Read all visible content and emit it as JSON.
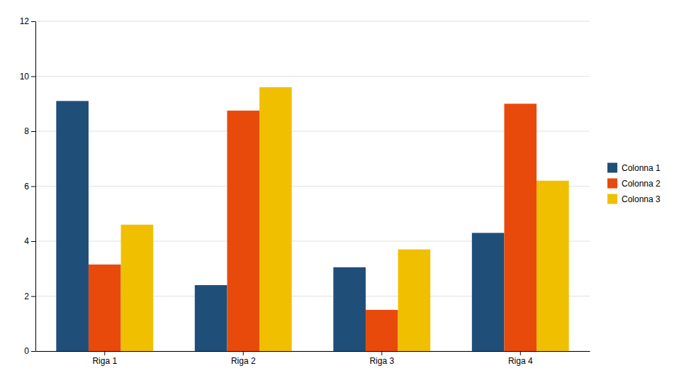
{
  "chart_data": {
    "type": "bar",
    "categories": [
      "Riga 1",
      "Riga 2",
      "Riga 3",
      "Riga 4"
    ],
    "series": [
      {
        "name": "Colonna 1",
        "color": "#1F4E79",
        "values": [
          9.1,
          2.4,
          3.05,
          4.3
        ]
      },
      {
        "name": "Colonna 2",
        "color": "#E84A0C",
        "values": [
          3.15,
          8.75,
          1.5,
          9.0
        ]
      },
      {
        "name": "Colonna 3",
        "color": "#F0C000",
        "values": [
          4.6,
          9.6,
          3.7,
          6.2
        ]
      }
    ],
    "ylim": [
      0,
      12
    ],
    "yticks": [
      0,
      2,
      4,
      6,
      8,
      10,
      12
    ],
    "grid": true,
    "legend": "right"
  }
}
